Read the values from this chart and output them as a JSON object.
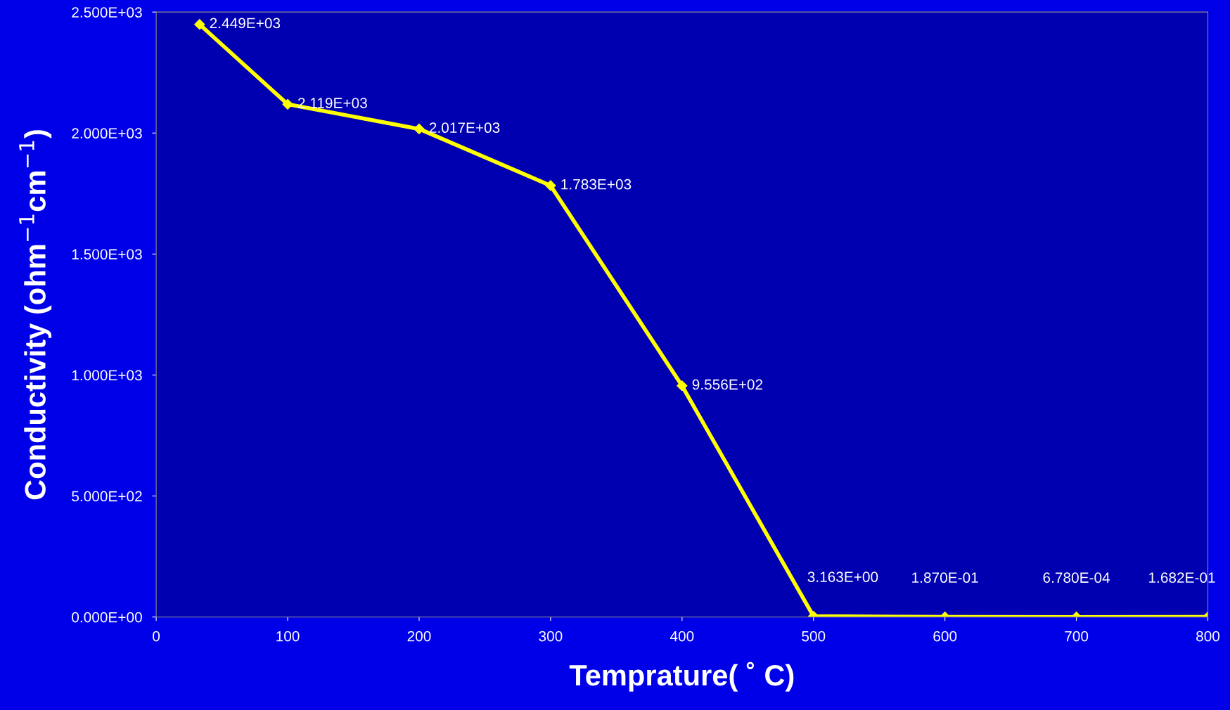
{
  "chart_data": {
    "type": "line",
    "xlabel": "Temprature( ˚ C)",
    "ylabel": "Conductivity (ohm$^{−1}$cm$^{−1}$)",
    "x": [
      33,
      100,
      200,
      300,
      400,
      500,
      600,
      700,
      800
    ],
    "series": [
      {
        "color": "#ffff00",
        "values": [
          2449,
          2119,
          2017,
          1783,
          955.6,
          3.163,
          0.187,
          0.000678,
          0.1682
        ],
        "value_labels": [
          "2.449E+03",
          "2.119E+03",
          "2.017E+03",
          "1.783E+03",
          "9.556E+02",
          "3.163E+00",
          "1.870E-01",
          "6.780E-04",
          "1.682E-01"
        ]
      }
    ],
    "xlim": [
      0,
      800
    ],
    "xticks": [
      0,
      100,
      200,
      300,
      400,
      500,
      600,
      700,
      800
    ],
    "ylim": [
      0,
      2500
    ],
    "yticks": [
      {
        "value": 0,
        "label": "0.000E+00"
      },
      {
        "value": 500,
        "label": "5.000E+02"
      },
      {
        "value": 1000,
        "label": "1.000E+03"
      },
      {
        "value": 1500,
        "label": "1.500E+03"
      },
      {
        "value": 2000,
        "label": "2.000E+03"
      },
      {
        "value": 2500,
        "label": "2.500E+03"
      }
    ],
    "grid": false,
    "legend": false,
    "marker": "diamond",
    "line_style": "solid"
  }
}
